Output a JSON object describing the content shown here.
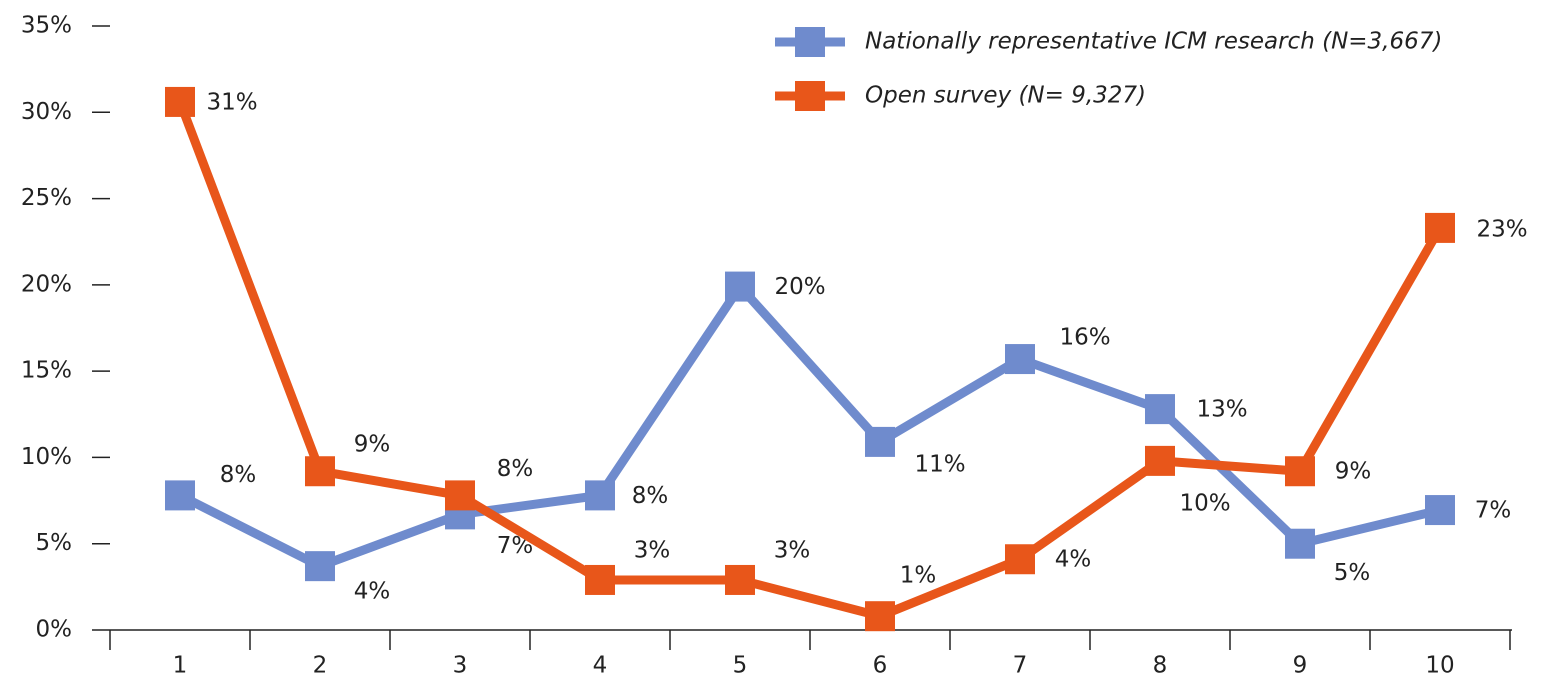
{
  "chart_data": {
    "type": "line",
    "categories": [
      "1",
      "2",
      "3",
      "4",
      "5",
      "6",
      "7",
      "8",
      "9",
      "10"
    ],
    "series": [
      {
        "name": "Nationally representative ICM research (N=3,667)",
        "color": "#6f8bcd",
        "values": [
          7.8,
          3.7,
          6.7,
          7.8,
          19.9,
          10.9,
          15.7,
          12.8,
          5.0,
          6.95
        ],
        "value_labels": [
          "8%",
          "4%",
          "7%",
          "8%",
          "20%",
          "11%",
          "16%",
          "13%",
          "5%",
          "7%"
        ]
      },
      {
        "name": "Open survey (N= 9,327)",
        "color": "#e8561a",
        "values": [
          30.6,
          9.2,
          7.8,
          2.9,
          2.9,
          0.8,
          4.1,
          9.8,
          9.2,
          23.3
        ],
        "value_labels": [
          "31%",
          "9%",
          "8%",
          "3%",
          "3%",
          "1%",
          "4%",
          "10%",
          "9%",
          "23%"
        ]
      }
    ],
    "ylim": [
      0,
      35
    ],
    "yticks": [
      {
        "value": 0,
        "label": "0%"
      },
      {
        "value": 5,
        "label": "5%"
      },
      {
        "value": 10,
        "label": "10%"
      },
      {
        "value": 15,
        "label": "15%"
      },
      {
        "value": 20,
        "label": "20%"
      },
      {
        "value": 25,
        "label": "25%"
      },
      {
        "value": 30,
        "label": "30%"
      },
      {
        "value": 35,
        "label": "35%"
      }
    ],
    "grid": false,
    "legend": "top-right"
  }
}
